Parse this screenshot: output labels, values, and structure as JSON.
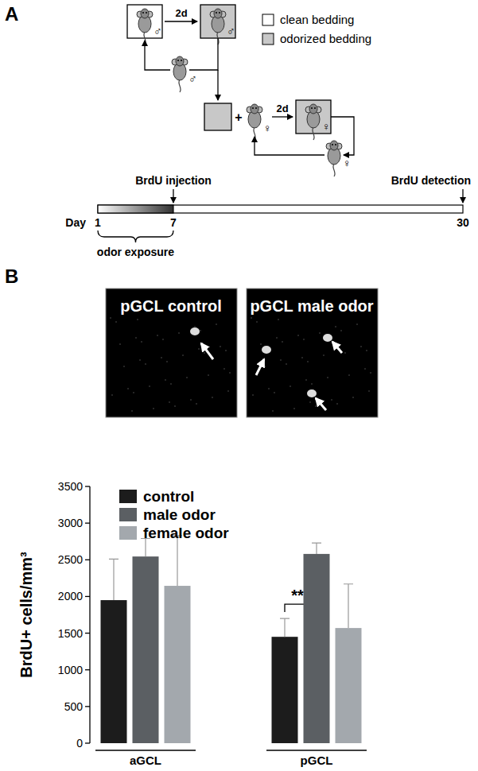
{
  "panel_a": {
    "label": "A",
    "legend": [
      {
        "label": "clean bedding"
      },
      {
        "label": "odorized bedding"
      }
    ],
    "steps": [
      "2d",
      "2d"
    ],
    "male_symbols": [
      "♂",
      "♂",
      "♂"
    ],
    "female_symbols": [
      "♀",
      "♀",
      "♀"
    ],
    "plus": "+",
    "timeline": {
      "axis_label": "Day",
      "days": [
        1,
        7,
        30
      ],
      "range": [
        1,
        30
      ],
      "events": [
        {
          "label": "BrdU injection",
          "day": 7
        },
        {
          "label": "BrdU detection",
          "day": 30
        }
      ],
      "exposure_label": "odor exposure",
      "exposure": [
        1,
        7
      ]
    }
  },
  "panel_b": {
    "label": "B",
    "images": [
      {
        "title": "pGCL control"
      },
      {
        "title": "pGCL male odor"
      }
    ]
  },
  "chart_data": {
    "type": "bar",
    "y_label": "BrdU+ cells/mm³",
    "categories": [
      "aGCL",
      "pGCL"
    ],
    "series": [
      {
        "name": "control",
        "color": "#1c1c1c",
        "values": [
          1950,
          1450
        ],
        "errors": [
          560,
          250
        ]
      },
      {
        "name": "male odor",
        "color": "#5b5f63",
        "values": [
          2545,
          2580
        ],
        "errors": [
          245,
          150
        ]
      },
      {
        "name": "female odor",
        "color": "#a3a8ad",
        "values": [
          2145,
          1570
        ],
        "errors": [
          685,
          600
        ]
      }
    ],
    "ylim": [
      0,
      3500
    ],
    "yticks": [
      0,
      500,
      1000,
      1500,
      2000,
      2500,
      3000,
      3500
    ],
    "legend": "top-left",
    "annotations": [
      {
        "text": "**",
        "category": 1,
        "series": [
          0,
          1
        ]
      }
    ]
  }
}
